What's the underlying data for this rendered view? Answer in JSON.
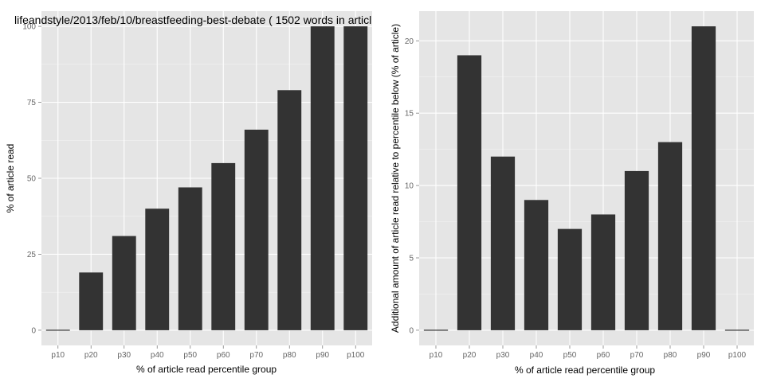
{
  "chart_data": [
    {
      "type": "bar",
      "title": "lifeandstyle/2013/feb/10/breastfeeding-best-debate ( 1502 words in articl",
      "xlabel": "% of article read percentile group",
      "ylabel": "% of article read",
      "categories": [
        "p10",
        "p20",
        "p30",
        "p40",
        "p50",
        "p60",
        "p70",
        "p80",
        "p90",
        "p100"
      ],
      "values": [
        0,
        19,
        31,
        40,
        47,
        55,
        66,
        79,
        100,
        100
      ],
      "ylim": [
        -5,
        105
      ],
      "yticks": [
        0,
        25,
        50,
        75,
        100
      ],
      "grid": true,
      "bar_color": "#333333",
      "panel_color": "#e5e5e5",
      "grid_color": "#ffffff"
    },
    {
      "type": "bar",
      "title": "",
      "xlabel": "% of article read percentile group",
      "ylabel": "Additional amount of article read relative to percentile below (% of article)",
      "categories": [
        "p10",
        "p20",
        "p30",
        "p40",
        "p50",
        "p60",
        "p70",
        "p80",
        "p90",
        "p100"
      ],
      "values": [
        0,
        19,
        12,
        9,
        7,
        8,
        11,
        13,
        21,
        0
      ],
      "ylim": [
        -1.05,
        22.05
      ],
      "yticks": [
        0,
        5,
        10,
        15,
        20
      ],
      "grid": true,
      "bar_color": "#333333",
      "panel_color": "#e5e5e5",
      "grid_color": "#ffffff"
    }
  ]
}
